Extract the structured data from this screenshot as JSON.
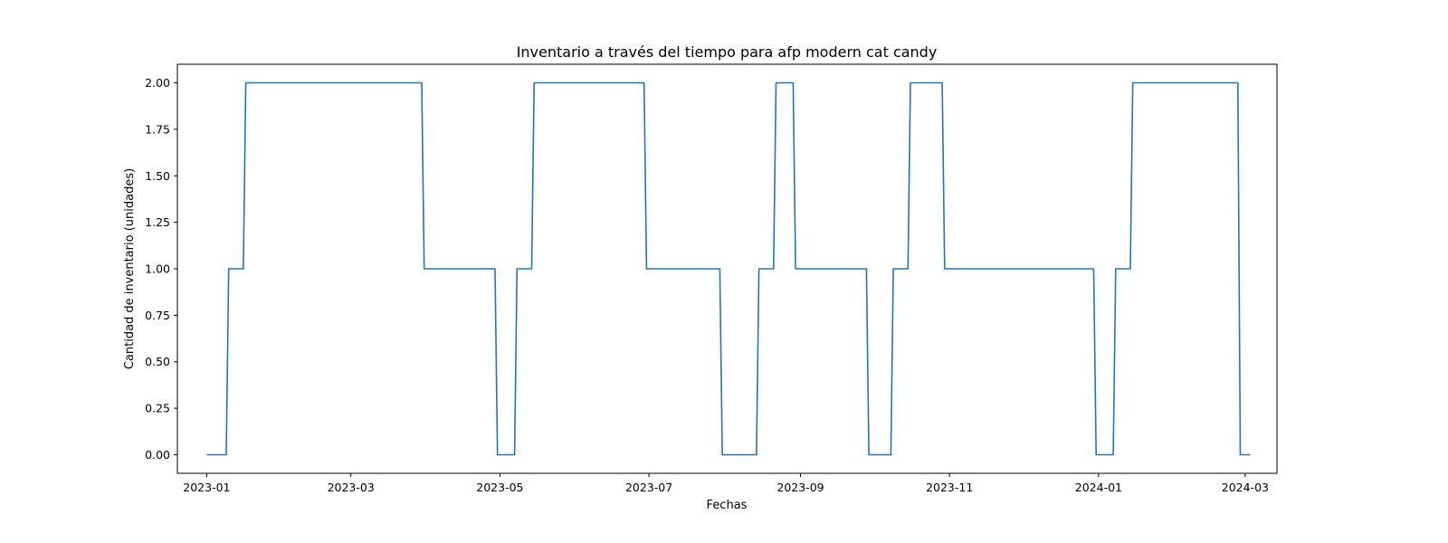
{
  "chart_data": {
    "type": "line",
    "title": "Inventario a través del tiempo para afp modern cat candy",
    "xlabel": "Fechas",
    "ylabel": "Cantidad de inventario (unidades)",
    "xlim": [
      "2022-12-20",
      "2024-03-14"
    ],
    "ylim": [
      -0.1,
      2.1
    ],
    "grid": false,
    "xticks": [
      "2023-01",
      "2023-03",
      "2023-05",
      "2023-07",
      "2023-09",
      "2023-11",
      "2024-01",
      "2024-03"
    ],
    "yticks": [
      "0.00",
      "0.25",
      "0.50",
      "0.75",
      "1.00",
      "1.25",
      "1.50",
      "1.75",
      "2.00"
    ],
    "series": [
      {
        "color": "#1f77b4",
        "x": [
          "2023-01-01",
          "2023-01-09",
          "2023-01-10",
          "2023-01-16",
          "2023-01-17",
          "2023-03-30",
          "2023-03-31",
          "2023-04-29",
          "2023-04-30",
          "2023-05-07",
          "2023-05-08",
          "2023-05-14",
          "2023-05-15",
          "2023-06-29",
          "2023-06-30",
          "2023-07-30",
          "2023-07-31",
          "2023-08-14",
          "2023-08-15",
          "2023-08-21",
          "2023-08-22",
          "2023-08-29",
          "2023-08-30",
          "2023-09-28",
          "2023-09-29",
          "2023-10-08",
          "2023-10-09",
          "2023-10-15",
          "2023-10-16",
          "2023-10-29",
          "2023-10-30",
          "2023-12-30",
          "2023-12-31",
          "2024-01-07",
          "2024-01-08",
          "2024-01-14",
          "2024-01-15",
          "2024-02-27",
          "2024-02-28",
          "2024-03-03"
        ],
        "y": [
          0,
          0,
          1,
          1,
          2,
          2,
          1,
          1,
          0,
          0,
          1,
          1,
          2,
          2,
          1,
          1,
          0,
          0,
          1,
          1,
          2,
          2,
          1,
          1,
          0,
          0,
          1,
          1,
          2,
          2,
          1,
          1,
          0,
          0,
          1,
          1,
          2,
          2,
          0,
          0
        ]
      }
    ]
  }
}
